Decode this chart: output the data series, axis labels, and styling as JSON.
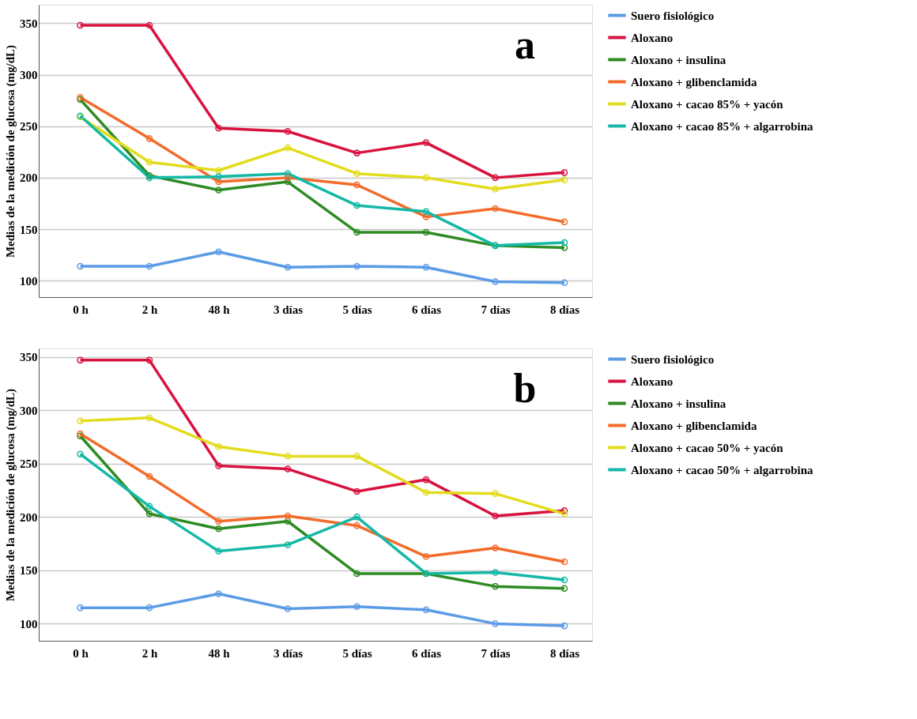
{
  "chart_data": [
    {
      "type": "line",
      "ylabel": "Medias de la medición de glucosa (mg/dL)",
      "annotations": [
        "a"
      ],
      "categories": [
        "0 h",
        "2 h",
        "48 h",
        "3 días",
        "5 días",
        "6 días",
        "7 días",
        "8 días"
      ],
      "ylim": [
        84,
        368
      ],
      "yticks": [
        100,
        150,
        200,
        250,
        300,
        350
      ],
      "grid": "y",
      "legend": "top right",
      "marker": "circle",
      "line_style": "solid",
      "series": [
        {
          "name": "Suero fisiológico",
          "color": "#5b9be6",
          "values": [
            114,
            114,
            128,
            113,
            114,
            113,
            99,
            98
          ]
        },
        {
          "name": "Aloxano",
          "color": "#d8123f",
          "values": [
            348,
            348,
            248,
            245,
            224,
            234,
            200,
            205
          ]
        },
        {
          "name": "Aloxano + insulina",
          "color": "#2e8b23",
          "values": [
            276,
            202,
            188,
            196,
            147,
            147,
            134,
            132
          ]
        },
        {
          "name": "Aloxano + glibenclamida",
          "color": "#f26b2a",
          "values": [
            278,
            238,
            196,
            200,
            193,
            162,
            170,
            157
          ]
        },
        {
          "name": "Aloxano + cacao 85% + yacón",
          "color": "#e3dc1c",
          "values": [
            259,
            215,
            207,
            229,
            204,
            200,
            189,
            198
          ]
        },
        {
          "name": "Aloxano + cacao  85% + algarrobina",
          "color": "#14b8a6",
          "values": [
            260,
            200,
            201,
            204,
            173,
            167,
            134,
            137
          ]
        }
      ]
    },
    {
      "type": "line",
      "ylabel": "Medias de la medición de glucosa (mg/dL)",
      "annotations": [
        "b"
      ],
      "categories": [
        "0 h",
        "2 h",
        "48 h",
        "3 días",
        "5 días",
        "6 días",
        "7 días",
        "8 días"
      ],
      "ylim": [
        84,
        358
      ],
      "yticks": [
        100,
        150,
        200,
        250,
        300,
        350
      ],
      "grid": "y",
      "legend": "top right",
      "marker": "circle",
      "line_style": "solid",
      "series": [
        {
          "name": "Suero fisiológico",
          "color": "#5b9be6",
          "values": [
            115,
            115,
            128,
            114,
            116,
            113,
            100,
            98
          ]
        },
        {
          "name": "Aloxano",
          "color": "#d8123f",
          "values": [
            347,
            347,
            248,
            245,
            224,
            235,
            201,
            206
          ]
        },
        {
          "name": "Aloxano + insulina",
          "color": "#2e8b23",
          "values": [
            276,
            203,
            189,
            196,
            147,
            147,
            135,
            133
          ]
        },
        {
          "name": "Aloxano + glibenclamida",
          "color": "#f26b2a",
          "values": [
            278,
            238,
            196,
            201,
            192,
            163,
            171,
            158
          ]
        },
        {
          "name": "Aloxano + cacao 50% + yacón",
          "color": "#e3dc1c",
          "values": [
            290,
            293,
            266,
            257,
            257,
            223,
            222,
            203
          ]
        },
        {
          "name": "Aloxano + cacao 50% + algarrobina",
          "color": "#14b8a6",
          "values": [
            259,
            210,
            168,
            174,
            200,
            147,
            148,
            141
          ]
        }
      ]
    }
  ]
}
